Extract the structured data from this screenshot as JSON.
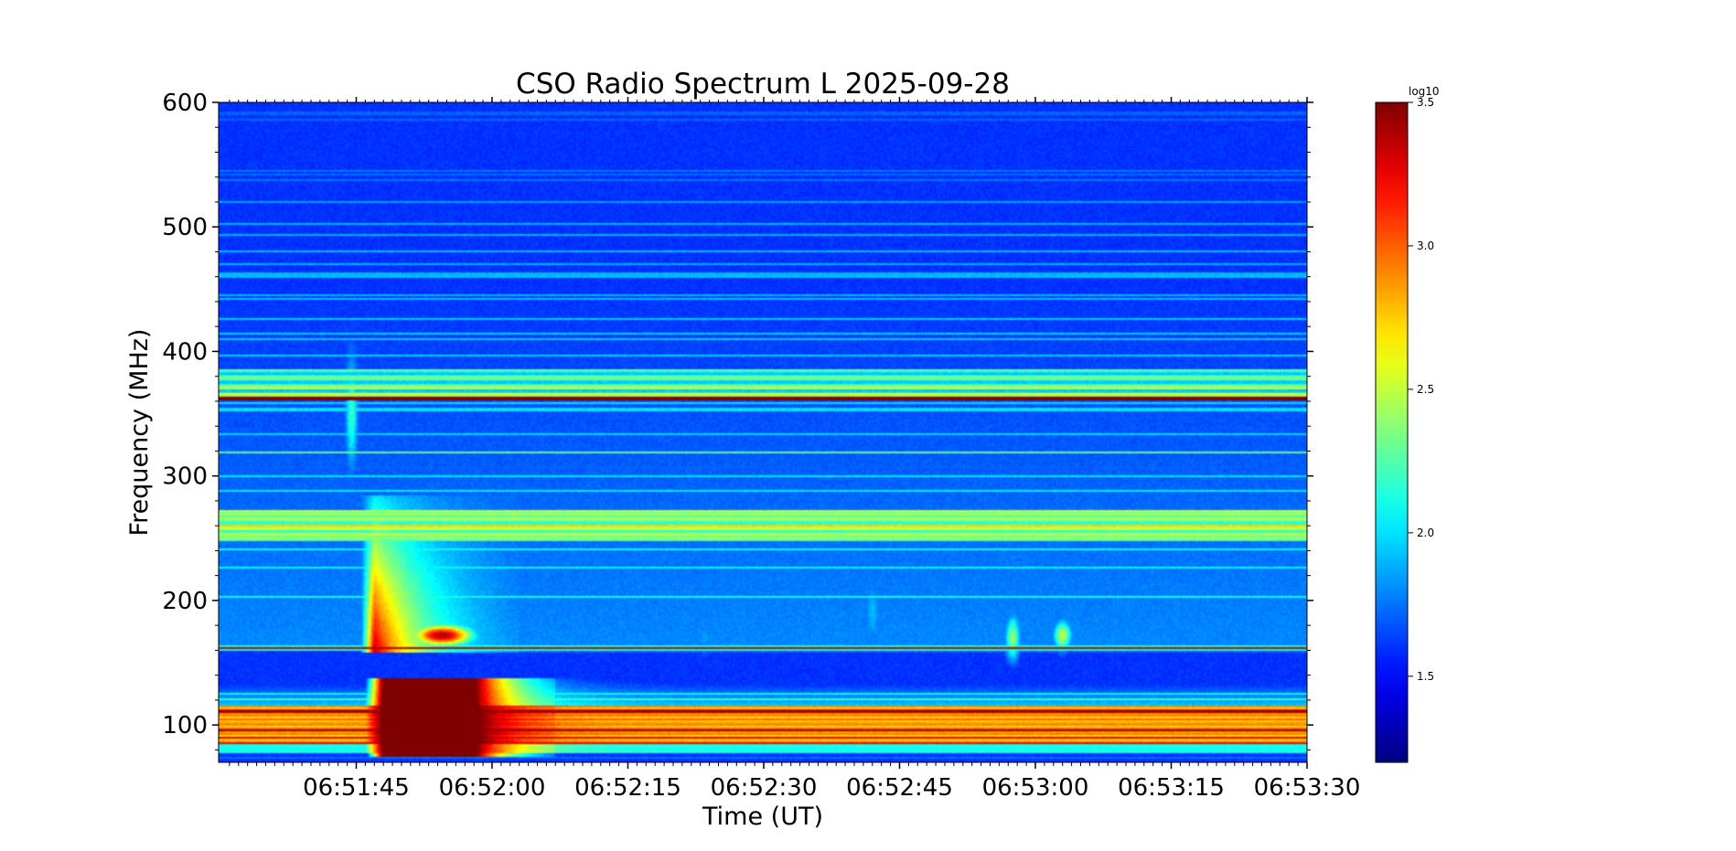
{
  "chart_data": {
    "type": "heatmap",
    "title": "CSO Radio Spectrum L 2025-09-28",
    "xlabel": "Time (UT)",
    "ylabel": "Frequency (MHz)",
    "x_ticks": [
      "06:51:45",
      "06:52:00",
      "06:52:15",
      "06:52:30",
      "06:52:45",
      "06:53:00",
      "06:53:15",
      "06:53:30"
    ],
    "x_tick_seconds": [
      0,
      15,
      30,
      45,
      60,
      75,
      90,
      105
    ],
    "x_range_seconds": [
      -15.2,
      105
    ],
    "y_ticks": [
      100,
      200,
      300,
      400,
      500,
      600
    ],
    "ylim": [
      70,
      600
    ],
    "colorbar": {
      "label": "log10",
      "ticks": [
        "1.5",
        "2.0",
        "2.5",
        "3.0",
        "3.5"
      ],
      "tick_values": [
        1.5,
        2.0,
        2.5,
        3.0,
        3.5
      ],
      "range": [
        1.2,
        3.5
      ],
      "colormap": "jet"
    },
    "grid": false,
    "features": [
      {
        "name": "type III burst",
        "t_start": 1.5,
        "t_end": 19,
        "f_low": 75,
        "f_high": 280,
        "peak_log10": 3.5
      },
      {
        "name": "strong emission band",
        "f_low": 85,
        "f_high": 115,
        "value_log10": 2.9
      },
      {
        "name": "interference line",
        "f": 362,
        "value_log10": 3.5
      },
      {
        "name": "interference band",
        "f_low": 250,
        "f_high": 270,
        "value_log10": 2.4
      },
      {
        "name": "dark gap",
        "f_low": 138,
        "f_high": 160,
        "value_log10": 1.25
      }
    ]
  }
}
